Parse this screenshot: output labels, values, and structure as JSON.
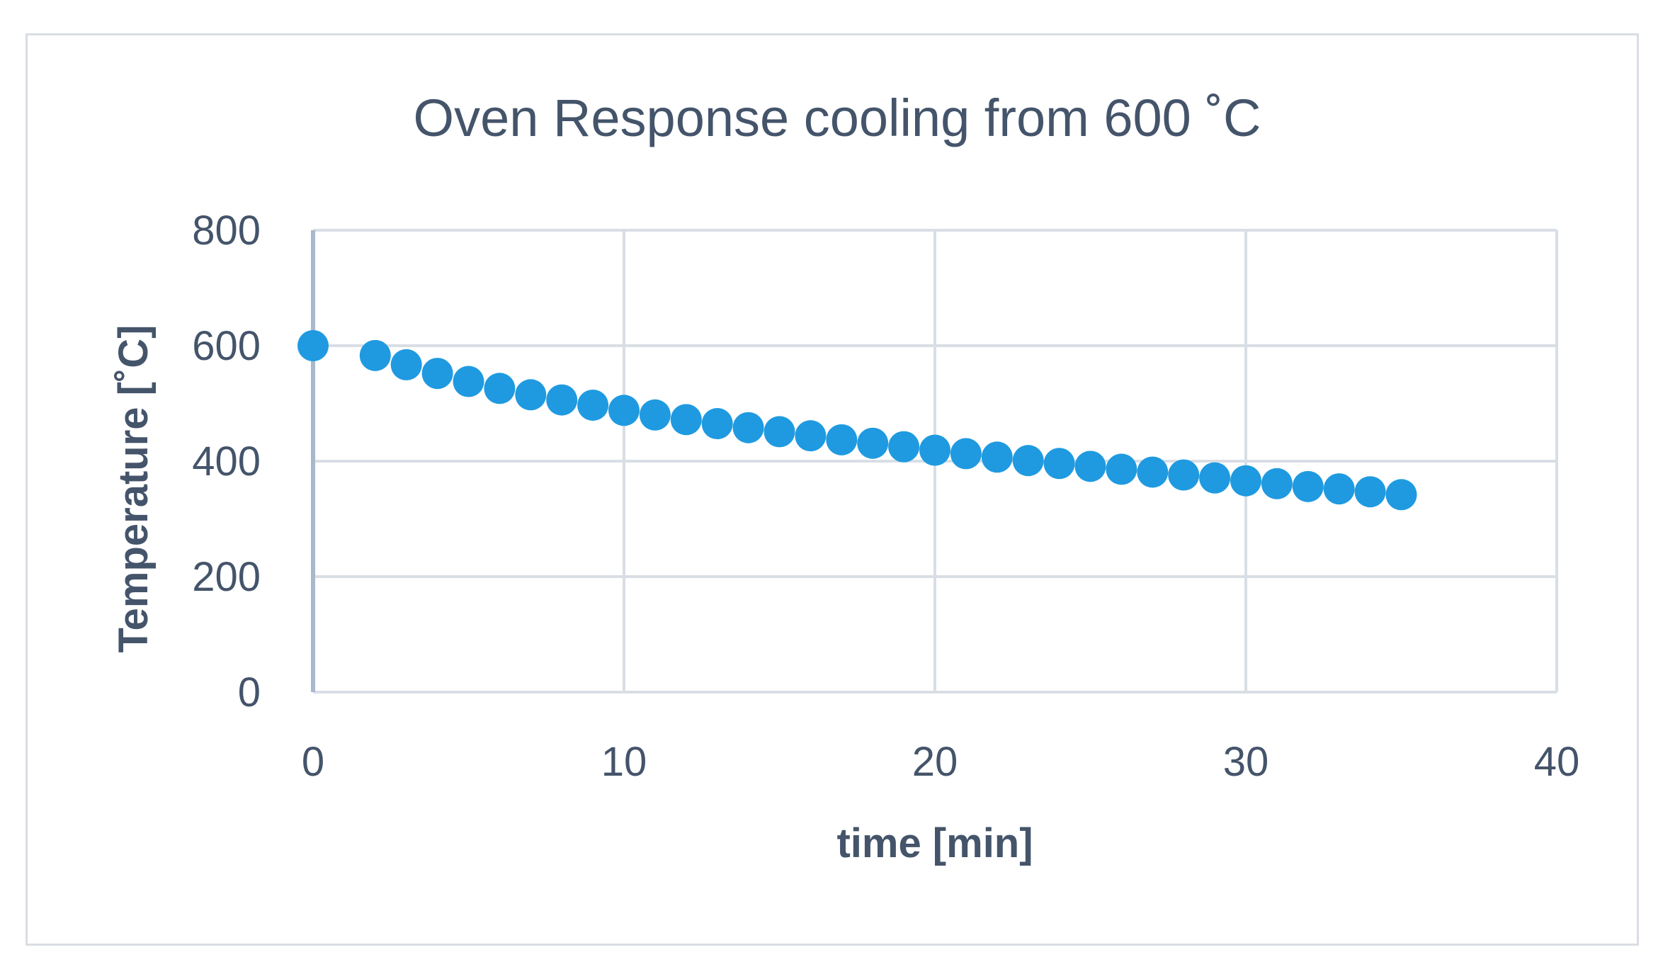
{
  "chart_data": {
    "type": "scatter",
    "title": "Oven Response cooling from 600 ˚C",
    "xlabel": "time [min]",
    "ylabel": "Temperature [˚C]",
    "xlim": [
      0,
      40
    ],
    "ylim": [
      0,
      800
    ],
    "x_ticks": [
      "0",
      "10",
      "20",
      "30",
      "40"
    ],
    "y_ticks": [
      "0",
      "200",
      "400",
      "600",
      "800"
    ],
    "grid": true,
    "legend": "none",
    "marker_color": "#1f9ae0",
    "series": [
      {
        "name": "Temperature",
        "x": [
          0,
          2,
          3,
          4,
          5,
          6,
          7,
          8,
          9,
          10,
          11,
          12,
          13,
          14,
          15,
          16,
          17,
          18,
          19,
          20,
          21,
          22,
          23,
          24,
          25,
          26,
          27,
          28,
          29,
          30,
          31,
          32,
          33,
          34,
          35
        ],
        "y": [
          600,
          583,
          567,
          552,
          538,
          526,
          515,
          506,
          497,
          488,
          480,
          472,
          465,
          458,
          451,
          444,
          437,
          431,
          425,
          419,
          413,
          407,
          401,
          396,
          391,
          386,
          381,
          376,
          371,
          366,
          361,
          356,
          352,
          347,
          342
        ]
      }
    ]
  }
}
